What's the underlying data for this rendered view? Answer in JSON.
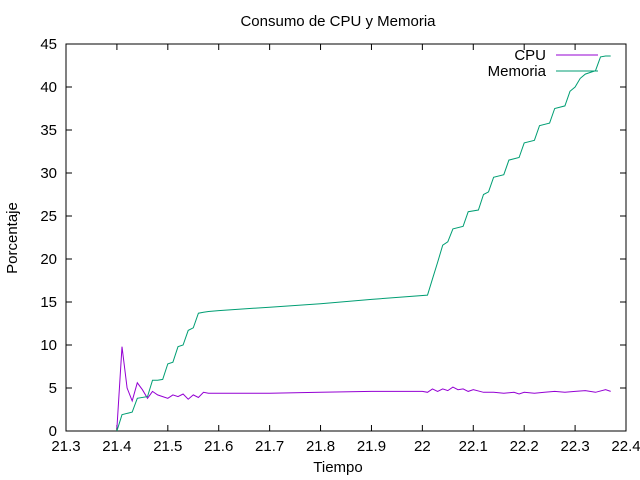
{
  "chart_data": {
    "type": "line",
    "title": "Consumo de CPU y Memoria",
    "xlabel": "Tiempo",
    "ylabel": "Porcentaje",
    "xlim": [
      21.3,
      22.4
    ],
    "ylim": [
      0,
      45
    ],
    "xticks": [
      "21.3",
      "21.4",
      "21.5",
      "21.6",
      "21.7",
      "21.8",
      "21.9",
      "22",
      "22.1",
      "22.2",
      "22.3",
      "22.4"
    ],
    "yticks": [
      "0",
      "5",
      "10",
      "15",
      "20",
      "25",
      "30",
      "35",
      "40",
      "45"
    ],
    "grid": false,
    "legend": "top-right",
    "colors": {
      "cpu": "#9400d3",
      "memoria": "#009e73"
    },
    "series": [
      {
        "name": "CPU",
        "x": [
          21.4,
          21.41,
          21.42,
          21.43,
          21.44,
          21.45,
          21.46,
          21.47,
          21.48,
          21.49,
          21.5,
          21.51,
          21.52,
          21.53,
          21.54,
          21.55,
          21.56,
          21.57,
          21.58,
          21.6,
          21.7,
          21.8,
          21.9,
          22.0,
          22.01,
          22.02,
          22.03,
          22.04,
          22.05,
          22.06,
          22.07,
          22.08,
          22.09,
          22.1,
          22.12,
          22.14,
          22.16,
          22.18,
          22.19,
          22.2,
          22.22,
          22.24,
          22.26,
          22.28,
          22.3,
          22.32,
          22.34,
          22.36,
          22.37
        ],
        "values": [
          0.3,
          9.8,
          5.0,
          3.5,
          5.6,
          4.8,
          3.8,
          4.6,
          4.2,
          4.0,
          3.8,
          4.2,
          4.0,
          4.3,
          3.7,
          4.2,
          3.9,
          4.5,
          4.4,
          4.4,
          4.4,
          4.5,
          4.6,
          4.6,
          4.5,
          4.9,
          4.6,
          4.9,
          4.7,
          5.1,
          4.8,
          4.9,
          4.6,
          4.8,
          4.5,
          4.5,
          4.4,
          4.5,
          4.3,
          4.5,
          4.4,
          4.5,
          4.6,
          4.5,
          4.6,
          4.7,
          4.5,
          4.8,
          4.6
        ]
      },
      {
        "name": "Memoria",
        "x": [
          21.4,
          21.41,
          21.43,
          21.44,
          21.46,
          21.47,
          21.48,
          21.49,
          21.5,
          21.51,
          21.52,
          21.53,
          21.54,
          21.55,
          21.56,
          21.57,
          21.58,
          21.6,
          21.7,
          21.8,
          21.9,
          22.01,
          22.02,
          22.03,
          22.04,
          22.05,
          22.06,
          22.08,
          22.09,
          22.11,
          22.12,
          22.13,
          22.14,
          22.16,
          22.17,
          22.19,
          22.2,
          22.22,
          22.23,
          22.25,
          22.26,
          22.28,
          22.29,
          22.3,
          22.31,
          22.32,
          22.33,
          22.34,
          22.35,
          22.36,
          22.37
        ],
        "values": [
          0.0,
          1.9,
          2.2,
          3.8,
          4.0,
          5.9,
          5.9,
          6.0,
          7.8,
          8.0,
          9.8,
          10.0,
          11.7,
          12.0,
          13.7,
          13.8,
          13.9,
          14.0,
          14.4,
          14.8,
          15.3,
          15.8,
          17.7,
          19.6,
          21.6,
          22.0,
          23.5,
          23.8,
          25.5,
          25.7,
          27.5,
          27.8,
          29.5,
          29.8,
          31.5,
          31.8,
          33.5,
          33.8,
          35.5,
          35.8,
          37.5,
          37.8,
          39.5,
          40.0,
          41.0,
          41.5,
          41.7,
          41.9,
          43.5,
          43.6,
          43.6
        ]
      }
    ]
  }
}
